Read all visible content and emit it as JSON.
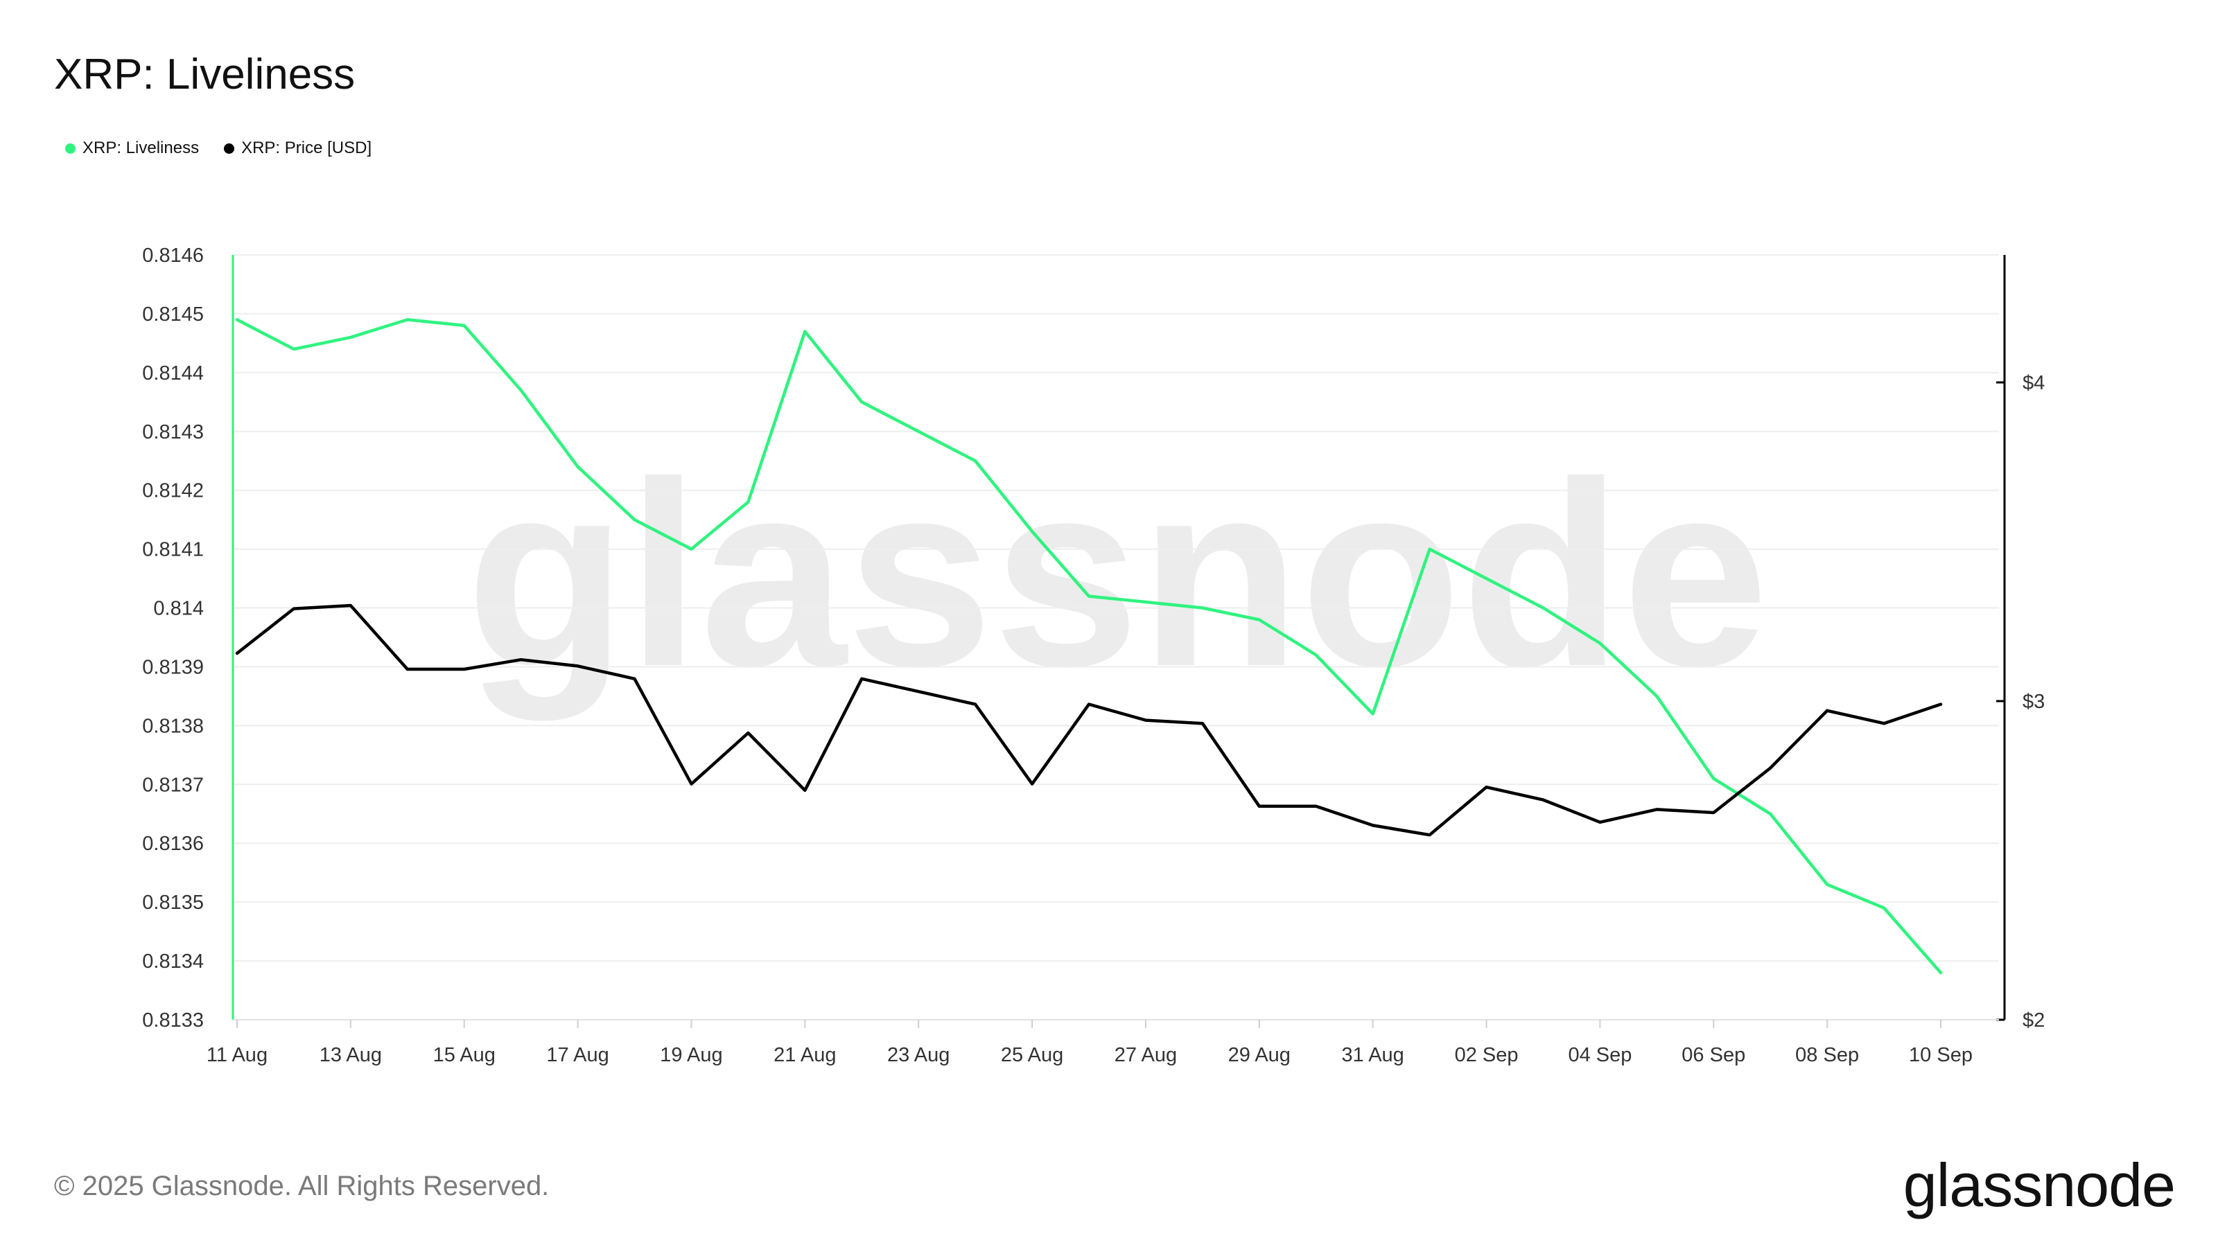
{
  "title": "XRP: Liveliness",
  "legend": [
    {
      "label": "XRP: Liveliness",
      "color": "#2ff37f"
    },
    {
      "label": "XRP: Price [USD]",
      "color": "#000000"
    }
  ],
  "watermark": "glassnode",
  "footer": "© 2025 Glassnode. All Rights Reserved.",
  "brand": "glassnode",
  "chart_data": {
    "type": "line",
    "x": [
      "11 Aug",
      "12 Aug",
      "13 Aug",
      "14 Aug",
      "15 Aug",
      "16 Aug",
      "17 Aug",
      "18 Aug",
      "19 Aug",
      "20 Aug",
      "21 Aug",
      "22 Aug",
      "23 Aug",
      "24 Aug",
      "25 Aug",
      "26 Aug",
      "27 Aug",
      "28 Aug",
      "29 Aug",
      "30 Aug",
      "31 Aug",
      "01 Sep",
      "02 Sep",
      "03 Sep",
      "04 Sep",
      "05 Sep",
      "06 Sep",
      "07 Sep",
      "08 Sep",
      "09 Sep",
      "10 Sep"
    ],
    "x_tick_labels": [
      "11 Aug",
      "13 Aug",
      "15 Aug",
      "17 Aug",
      "19 Aug",
      "21 Aug",
      "23 Aug",
      "25 Aug",
      "27 Aug",
      "29 Aug",
      "31 Aug",
      "02 Sep",
      "04 Sep",
      "06 Sep",
      "08 Sep",
      "10 Sep"
    ],
    "y_left": {
      "ticks": [
        "0.8133",
        "0.8134",
        "0.8135",
        "0.8136",
        "0.8137",
        "0.8138",
        "0.8139",
        "0.814",
        "0.8141",
        "0.8142",
        "0.8143",
        "0.8144",
        "0.8145",
        "0.8146"
      ],
      "range": [
        0.8133,
        0.8146
      ]
    },
    "y_right": {
      "ticks": [
        "$2",
        "$3",
        "$4"
      ],
      "range": [
        2,
        4.4
      ]
    },
    "grid": true,
    "legend_position": "top-left",
    "series": [
      {
        "name": "XRP: Liveliness",
        "axis": "left",
        "color": "#2ff37f",
        "values": [
          0.81449,
          0.81444,
          0.81446,
          0.81449,
          0.81448,
          0.81437,
          0.81424,
          0.81415,
          0.8141,
          0.81418,
          0.81447,
          0.81435,
          0.8143,
          0.81425,
          0.81413,
          0.81402,
          0.81401,
          0.814,
          0.81398,
          0.81392,
          0.81382,
          0.8141,
          0.81405,
          0.814,
          0.81394,
          0.81385,
          0.81371,
          0.81365,
          0.81353,
          0.81349,
          0.81338
        ]
      },
      {
        "name": "XRP: Price [USD]",
        "axis": "right",
        "color": "#000000",
        "values": [
          3.15,
          3.29,
          3.3,
          3.1,
          3.1,
          3.13,
          3.11,
          3.07,
          2.74,
          2.9,
          2.72,
          3.07,
          3.03,
          2.99,
          2.74,
          2.99,
          2.94,
          2.93,
          2.67,
          2.67,
          2.61,
          2.58,
          2.73,
          2.69,
          2.62,
          2.66,
          2.65,
          2.79,
          2.97,
          2.93,
          2.99
        ]
      }
    ]
  }
}
